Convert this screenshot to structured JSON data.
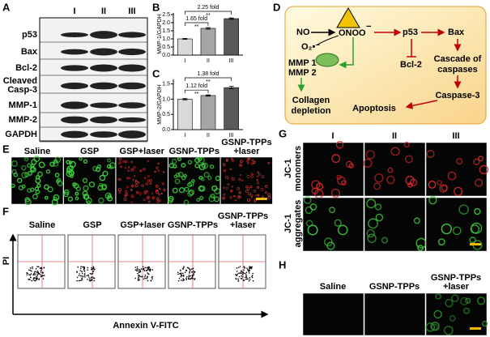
{
  "panel_labels": [
    "A",
    "B",
    "C",
    "D",
    "E",
    "F",
    "G",
    "H"
  ],
  "western_blot": {
    "columns": [
      "I",
      "II",
      "III"
    ],
    "rows": [
      "p53",
      "Bax",
      "Bcl-2",
      [
        "Cleaved",
        "Casp-3"
      ],
      "MMP-1",
      "MMP-2",
      "GAPDH"
    ]
  },
  "chart_data": [
    {
      "type": "bar",
      "y_label": "MMP-1/GAPDH",
      "categories": [
        "I",
        "II",
        "III"
      ],
      "values": [
        1.0,
        1.65,
        2.25
      ],
      "errors": [
        0.03,
        0.05,
        0.04
      ],
      "colors": [
        "#d9d9d9",
        "#a6a6a6",
        "#595959"
      ],
      "ylim": [
        0,
        2.6
      ],
      "yticks": [
        {
          "value": 0,
          "label": "0.0"
        },
        {
          "value": 0.5,
          "label": "0.5"
        },
        {
          "value": 1,
          "label": "1.0"
        },
        {
          "value": 1.5,
          "label": "1.5"
        },
        {
          "value": 2,
          "label": "2.0"
        },
        {
          "value": 2.5,
          "label": "2.5"
        }
      ],
      "comparisons": [
        {
          "label": "1.65 fold",
          "sig": "**"
        },
        {
          "label": "2.25 fold",
          "sig": "**"
        }
      ]
    },
    {
      "type": "bar",
      "y_label": "MMP-2/GAPDH",
      "categories": [
        "I",
        "II",
        "III"
      ],
      "values": [
        1.0,
        1.12,
        1.38
      ],
      "errors": [
        0.02,
        0.02,
        0.04
      ],
      "colors": [
        "#d9d9d9",
        "#a6a6a6",
        "#595959"
      ],
      "ylim": [
        0,
        1.65
      ],
      "yticks": [
        {
          "value": 0,
          "label": "0.0"
        },
        {
          "value": 0.5,
          "label": "0.5"
        },
        {
          "value": 1,
          "label": "1.0"
        },
        {
          "value": 1.5,
          "label": "1.5"
        }
      ],
      "comparisons": [
        {
          "label": "1.12 fold",
          "sig": "**"
        },
        {
          "label": "1.38 fold",
          "sig": "**"
        }
      ]
    }
  ],
  "diagram": {
    "no": "NO",
    "onoo": "ONOO",
    "onoo_charge": "−",
    "superoxide": "O₂•⁻",
    "p53": "p53",
    "bax": "Bax",
    "bcl2": "Bcl-2",
    "cascade": [
      "Cascade of",
      "caspases"
    ],
    "caspase3": "Caspase-3",
    "apoptosis": "Apoptosis",
    "mmp": [
      "MMP 1",
      "MMP 2"
    ],
    "collagen": [
      "Collagen",
      "depletion"
    ]
  },
  "panel_e": {
    "labels": [
      "Saline",
      "GSP",
      "GSP+laser",
      "GSNP-TPPs",
      [
        "GSNP-TPPs",
        "+laser"
      ]
    ]
  },
  "panel_f": {
    "labels": [
      "Saline",
      "GSP",
      "GSP+laser",
      "GSNP-TPPs",
      [
        "GSNP-TPPs",
        "+laser"
      ]
    ],
    "y_label": "PI",
    "x_label": "Annexin V-FITC"
  },
  "panel_g": {
    "columns": [
      "I",
      "II",
      "III"
    ],
    "rows": [
      [
        "JC-1",
        "monomers"
      ],
      [
        "JC-1",
        "aggregates"
      ]
    ]
  },
  "panel_h": {
    "labels": [
      "Saline",
      "GSNP-TPPs",
      [
        "GSNP-TPPs",
        "+laser"
      ]
    ]
  }
}
